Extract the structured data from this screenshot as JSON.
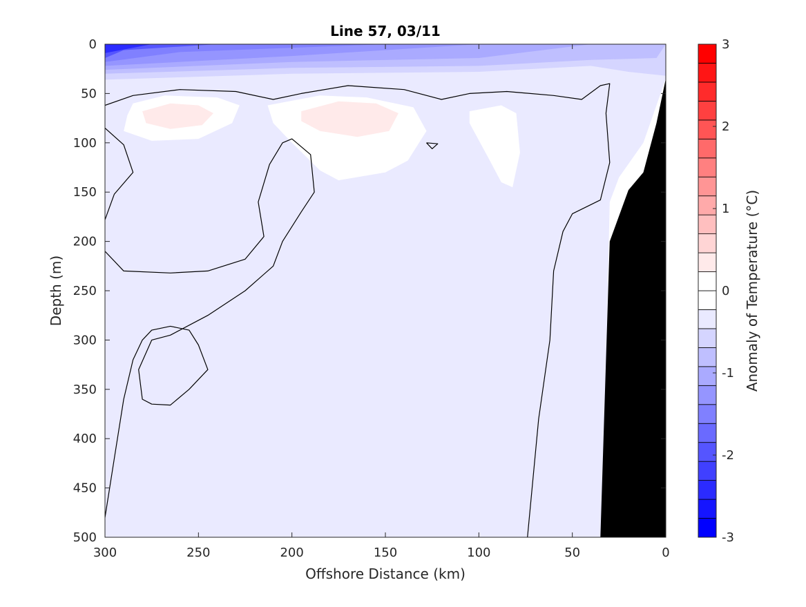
{
  "chart_data": {
    "type": "heatmap",
    "title": "Line 57, 03/11",
    "xlabel": "Offshore Distance (km)",
    "ylabel": "Depth (m)",
    "xlim": [
      300,
      0
    ],
    "ylim": [
      500,
      0
    ],
    "x_reversed": true,
    "y_reversed": true,
    "x_ticks": [
      "300",
      "250",
      "200",
      "150",
      "100",
      "50",
      "0"
    ],
    "y_ticks": [
      "0",
      "50",
      "100",
      "150",
      "200",
      "250",
      "300",
      "350",
      "400",
      "450",
      "500"
    ],
    "colorbar": {
      "label": "Anomaly of Temperature (°C)",
      "range": [
        -3,
        3
      ],
      "step": 0.25,
      "ticks": [
        "-3",
        "-2",
        "-1",
        "0",
        "1",
        "2",
        "3"
      ],
      "colors_low_to_high": [
        "#0000ff",
        "#1515ff",
        "#2b2bff",
        "#4040ff",
        "#5555ff",
        "#6a6aff",
        "#8080ff",
        "#9595ff",
        "#aaaaff",
        "#bfbfff",
        "#d5d5ff",
        "#eaeaff",
        "#ffffff",
        "#ffffff",
        "#ffeaea",
        "#ffd5d5",
        "#ffbfbf",
        "#ffaaaa",
        "#ff9595",
        "#ff8080",
        "#ff6a6a",
        "#ff5555",
        "#ff4040",
        "#ff2b2b",
        "#ff1515",
        "#ff0000"
      ]
    },
    "zero_contour_color": "#000000",
    "bathymetry_color": "#000000",
    "regions": [
      {
        "anomaly": -0.25,
        "polygon": [
          [
            300,
            0
          ],
          [
            0,
            0
          ],
          [
            0,
            35
          ],
          [
            12,
            100
          ],
          [
            25,
            135
          ],
          [
            30,
            160
          ],
          [
            34,
            500
          ],
          [
            300,
            500
          ]
        ]
      },
      {
        "anomaly": -0.5,
        "polygon": [
          [
            300,
            0
          ],
          [
            0,
            0
          ],
          [
            0,
            32
          ],
          [
            20,
            28
          ],
          [
            40,
            22
          ],
          [
            100,
            28
          ],
          [
            200,
            30
          ],
          [
            300,
            36
          ]
        ]
      },
      {
        "anomaly": -0.75,
        "polygon": [
          [
            300,
            0
          ],
          [
            0,
            0
          ],
          [
            5,
            14
          ],
          [
            40,
            16
          ],
          [
            100,
            22
          ],
          [
            200,
            24
          ],
          [
            300,
            30
          ]
        ]
      },
      {
        "anomaly": -1.0,
        "polygon": [
          [
            300,
            0
          ],
          [
            40,
            0
          ],
          [
            100,
            14
          ],
          [
            200,
            18
          ],
          [
            300,
            26
          ]
        ]
      },
      {
        "anomaly": -1.25,
        "polygon": [
          [
            300,
            0
          ],
          [
            100,
            0
          ],
          [
            200,
            12
          ],
          [
            300,
            22
          ]
        ]
      },
      {
        "anomaly": -1.5,
        "polygon": [
          [
            300,
            0
          ],
          [
            150,
            0
          ],
          [
            260,
            8
          ],
          [
            300,
            18
          ]
        ]
      },
      {
        "anomaly": -2.0,
        "polygon": [
          [
            300,
            0
          ],
          [
            240,
            0
          ],
          [
            290,
            6
          ],
          [
            300,
            14
          ]
        ]
      },
      {
        "anomaly": -2.5,
        "polygon": [
          [
            300,
            0
          ],
          [
            275,
            0
          ],
          [
            300,
            9
          ]
        ]
      },
      {
        "anomaly": 0.25,
        "polygon": [
          [
            285,
            60
          ],
          [
            268,
            52
          ],
          [
            240,
            54
          ],
          [
            228,
            62
          ],
          [
            232,
            80
          ],
          [
            250,
            96
          ],
          [
            275,
            98
          ],
          [
            290,
            88
          ],
          [
            288,
            72
          ]
        ]
      },
      {
        "anomaly": 0.25,
        "polygon": [
          [
            213,
            62
          ],
          [
            185,
            52
          ],
          [
            160,
            54
          ],
          [
            135,
            64
          ],
          [
            128,
            88
          ],
          [
            138,
            118
          ],
          [
            150,
            130
          ],
          [
            175,
            138
          ],
          [
            185,
            128
          ],
          [
            200,
            100
          ],
          [
            210,
            80
          ]
        ]
      },
      {
        "anomaly": 0.25,
        "polygon": [
          [
            105,
            68
          ],
          [
            88,
            62
          ],
          [
            80,
            70
          ],
          [
            78,
            110
          ],
          [
            82,
            145
          ],
          [
            88,
            140
          ],
          [
            95,
            115
          ],
          [
            105,
            80
          ]
        ]
      },
      {
        "anomaly": 0.5,
        "polygon": [
          [
            280,
            68
          ],
          [
            265,
            60
          ],
          [
            250,
            62
          ],
          [
            242,
            70
          ],
          [
            248,
            82
          ],
          [
            265,
            86
          ],
          [
            278,
            80
          ]
        ]
      },
      {
        "anomaly": 0.5,
        "polygon": [
          [
            195,
            68
          ],
          [
            175,
            58
          ],
          [
            155,
            60
          ],
          [
            143,
            70
          ],
          [
            148,
            88
          ],
          [
            165,
            94
          ],
          [
            185,
            88
          ],
          [
            195,
            78
          ]
        ]
      },
      {
        "anomaly": -0.25,
        "polygon": [
          [
            300,
            295
          ],
          [
            288,
            298
          ],
          [
            285,
            325
          ],
          [
            288,
            348
          ],
          [
            290,
            378
          ],
          [
            300,
            382
          ]
        ]
      },
      {
        "anomaly": -0.25,
        "polygon": [
          [
            225,
            280
          ],
          [
            218,
            278
          ],
          [
            212,
            300
          ],
          [
            208,
            325
          ],
          [
            208,
            360
          ],
          [
            205,
            390
          ],
          [
            195,
            420
          ],
          [
            190,
            450
          ],
          [
            190,
            480
          ],
          [
            176,
            500
          ],
          [
            245,
            500
          ],
          [
            250,
            480
          ],
          [
            262,
            430
          ],
          [
            270,
            380
          ],
          [
            275,
            340
          ],
          [
            245,
            338
          ],
          [
            235,
            320
          ]
        ]
      }
    ],
    "zero_contours": [
      [
        [
          300,
          62
        ],
        [
          285,
          52
        ],
        [
          260,
          46
        ],
        [
          230,
          48
        ],
        [
          210,
          56
        ],
        [
          195,
          50
        ],
        [
          170,
          42
        ],
        [
          140,
          46
        ],
        [
          120,
          56
        ],
        [
          105,
          50
        ],
        [
          85,
          48
        ],
        [
          60,
          52
        ],
        [
          45,
          56
        ],
        [
          35,
          42
        ],
        [
          30,
          40
        ],
        [
          32,
          70
        ],
        [
          30,
          120
        ],
        [
          35,
          158
        ],
        [
          50,
          172
        ],
        [
          55,
          190
        ],
        [
          60,
          230
        ],
        [
          62,
          300
        ],
        [
          68,
          380
        ],
        [
          72,
          460
        ],
        [
          74,
          500
        ]
      ],
      [
        [
          300,
          85
        ],
        [
          290,
          102
        ],
        [
          285,
          130
        ],
        [
          295,
          152
        ],
        [
          300,
          178
        ]
      ],
      [
        [
          300,
          210
        ],
        [
          290,
          230
        ],
        [
          265,
          232
        ],
        [
          245,
          230
        ],
        [
          225,
          218
        ],
        [
          215,
          195
        ],
        [
          218,
          160
        ],
        [
          212,
          122
        ],
        [
          205,
          100
        ],
        [
          200,
          96
        ],
        [
          190,
          112
        ],
        [
          188,
          150
        ],
        [
          195,
          170
        ],
        [
          205,
          200
        ],
        [
          210,
          225
        ],
        [
          225,
          250
        ],
        [
          245,
          275
        ],
        [
          265,
          295
        ],
        [
          275,
          300
        ],
        [
          282,
          330
        ],
        [
          280,
          360
        ],
        [
          275,
          365
        ],
        [
          265,
          366
        ],
        [
          255,
          350
        ],
        [
          245,
          330
        ],
        [
          250,
          305
        ],
        [
          255,
          290
        ],
        [
          265,
          286
        ],
        [
          275,
          290
        ],
        [
          280,
          300
        ],
        [
          285,
          320
        ],
        [
          290,
          360
        ],
        [
          295,
          420
        ],
        [
          300,
          480
        ],
        [
          305,
          500
        ]
      ],
      [
        [
          128,
          100
        ],
        [
          122,
          101
        ],
        [
          125,
          106
        ],
        [
          128,
          100
        ]
      ]
    ],
    "bathymetry": [
      [
        0,
        35
      ],
      [
        5,
        80
      ],
      [
        12,
        130
      ],
      [
        20,
        148
      ],
      [
        30,
        200
      ],
      [
        35,
        500
      ],
      [
        0,
        500
      ]
    ]
  }
}
